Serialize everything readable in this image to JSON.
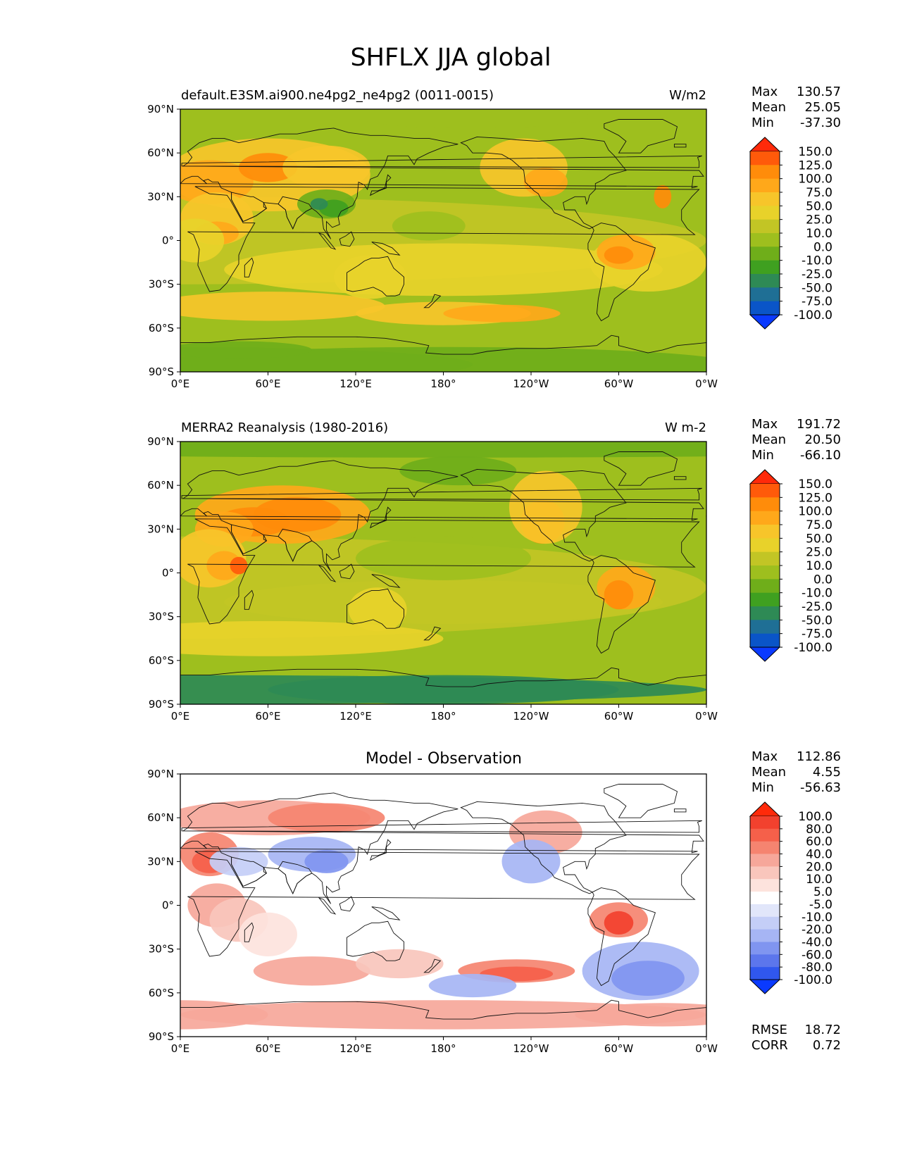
{
  "figure": {
    "title": "SHFLX JJA global"
  },
  "axes": {
    "lat_ticks": [
      "90°N",
      "60°N",
      "30°N",
      "0°",
      "30°S",
      "60°S",
      "90°S"
    ],
    "lon_ticks": [
      "0°E",
      "60°E",
      "120°E",
      "180°",
      "120°W",
      "60°W",
      "0°W"
    ]
  },
  "panels": [
    {
      "left_title": "default.E3SM.ai900.ne4pg2_ne4pg2 (0011-0015)",
      "center_title": "",
      "units": "W/m2",
      "stats": {
        "max_label": "Max",
        "max": "130.57",
        "mean_label": "Mean",
        "mean": "25.05",
        "min_label": "Min",
        "min": "-37.30"
      },
      "colorbar": {
        "levels": [
          "150.0",
          "125.0",
          "100.0",
          "75.0",
          "50.0",
          "25.0",
          "10.0",
          "0.0",
          "-10.0",
          "-25.0",
          "-50.0",
          "-75.0",
          "-100.0"
        ],
        "colors": [
          "#ff2a0a",
          "#ff5a0a",
          "#ff8c0a",
          "#ffa81a",
          "#f7c52a",
          "#e8d22a",
          "#c2c525",
          "#9ebf1e",
          "#6fae1a",
          "#3fa020",
          "#2e8a55",
          "#1f6f95",
          "#0a55c8",
          "#0a3aff"
        ]
      },
      "map": {
        "field": "model"
      }
    },
    {
      "left_title": "MERRA2 Reanalysis (1980-2016)",
      "center_title": "",
      "units": "W m-2",
      "stats": {
        "max_label": "Max",
        "max": "191.72",
        "mean_label": "Mean",
        "mean": "20.50",
        "min_label": "Min",
        "min": "-66.10"
      },
      "colorbar": {
        "levels": [
          "150.0",
          "125.0",
          "100.0",
          "75.0",
          "50.0",
          "25.0",
          "10.0",
          "0.0",
          "-10.0",
          "-25.0",
          "-50.0",
          "-75.0",
          "-100.0"
        ],
        "colors": [
          "#ff2a0a",
          "#ff5a0a",
          "#ff8c0a",
          "#ffa81a",
          "#f7c52a",
          "#e8d22a",
          "#c2c525",
          "#9ebf1e",
          "#6fae1a",
          "#3fa020",
          "#2e8a55",
          "#1f6f95",
          "#0a55c8",
          "#0a3aff"
        ]
      },
      "map": {
        "field": "obs"
      }
    },
    {
      "left_title": "",
      "center_title": "Model - Observation",
      "units": "",
      "stats": {
        "max_label": "Max",
        "max": "112.86",
        "mean_label": "Mean",
        "mean": "4.55",
        "min_label": "Min",
        "min": "-56.63"
      },
      "extra_stats": {
        "rmse_label": "RMSE",
        "rmse": "18.72",
        "corr_label": "CORR",
        "corr": "0.72"
      },
      "colorbar": {
        "levels": [
          "100.0",
          "80.0",
          "60.0",
          "40.0",
          "20.0",
          "10.0",
          "5.0",
          "-5.0",
          "-10.0",
          "-20.0",
          "-40.0",
          "-60.0",
          "-80.0",
          "-100.0"
        ],
        "colors": [
          "#ff2a0a",
          "#f2412e",
          "#f5604a",
          "#f58470",
          "#f6a79a",
          "#f9c6bc",
          "#fde3dd",
          "#ffffff",
          "#e1e6fa",
          "#c4cef7",
          "#a6b5f4",
          "#8095f0",
          "#5c76ec",
          "#3057ee",
          "#0a3aff"
        ]
      },
      "map": {
        "field": "diff"
      }
    }
  ]
}
